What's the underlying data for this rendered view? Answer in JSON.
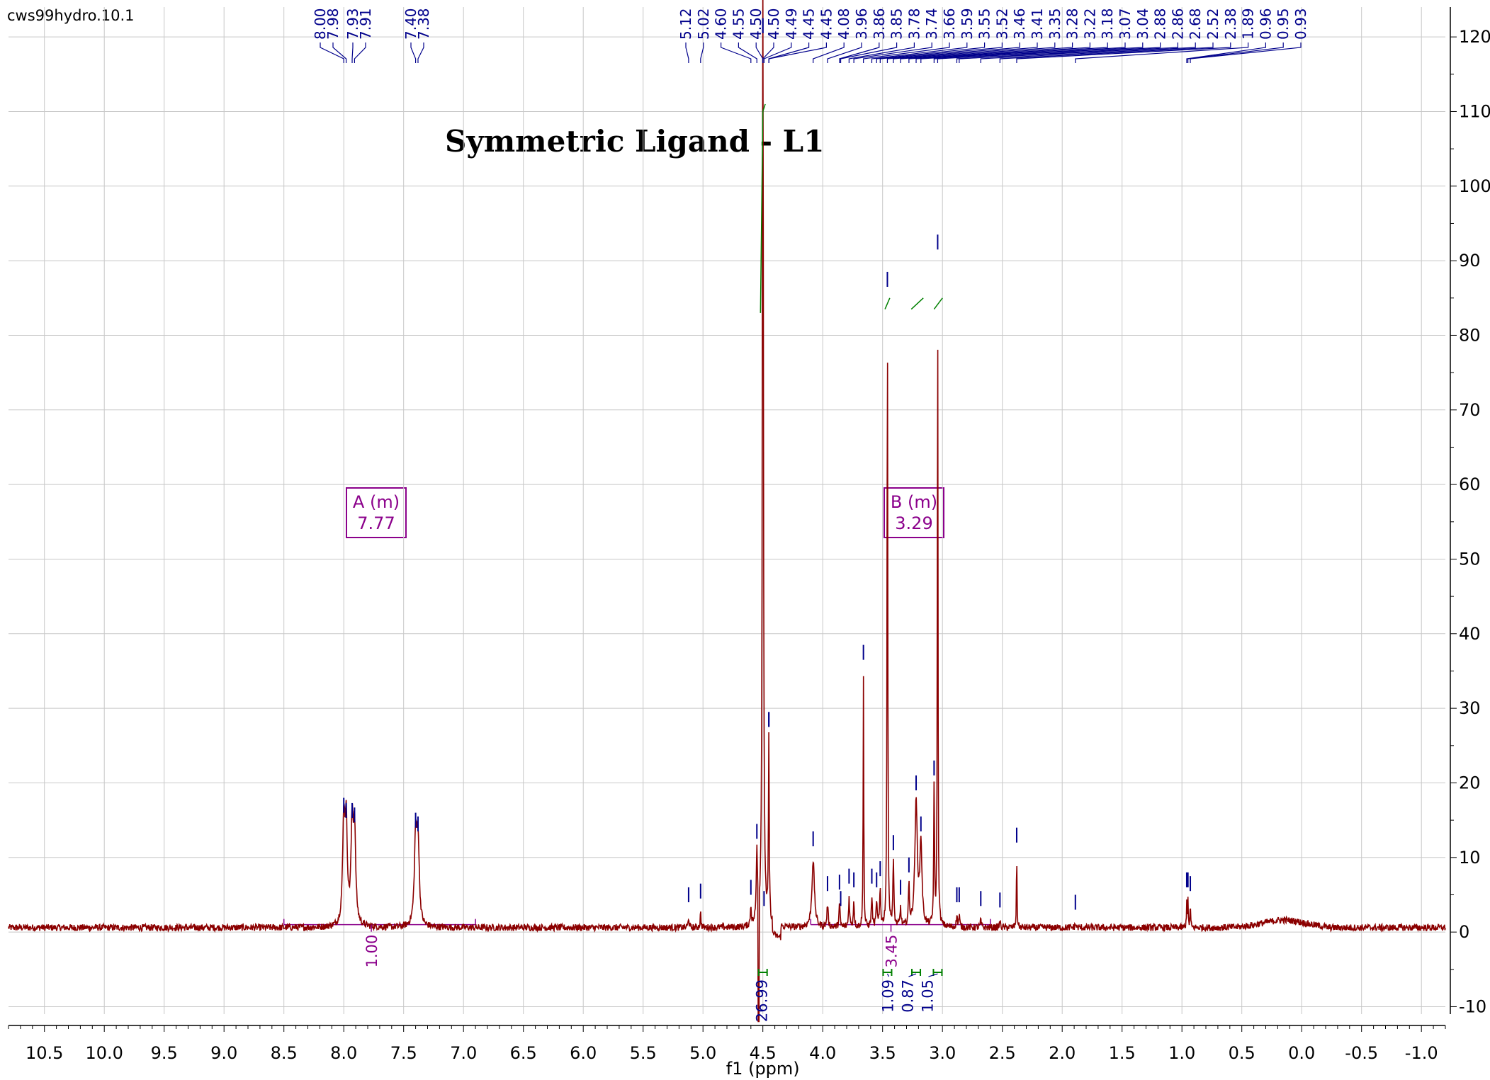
{
  "chart_data": {
    "type": "line",
    "dataset_name": "cws99hydro.10.1",
    "title": "Symmetric Ligand - L1",
    "xlabel": "f1 (ppm)",
    "ylabel": "",
    "x_reversed": true,
    "xlim": [
      10.8,
      -1.2
    ],
    "ylim": [
      -11,
      124
    ],
    "x_ticks": [
      "10.5",
      "10.0",
      "9.5",
      "9.0",
      "8.5",
      "8.0",
      "7.5",
      "7.0",
      "6.5",
      "6.0",
      "5.5",
      "5.0",
      "4.5",
      "4.0",
      "3.5",
      "3.0",
      "2.5",
      "2.0",
      "1.5",
      "1.0",
      "0.5",
      "0.0",
      "-0.5",
      "-1.0"
    ],
    "y_ticks": [
      "-10",
      "0",
      "10",
      "20",
      "30",
      "40",
      "50",
      "60",
      "70",
      "80",
      "90",
      "100",
      "110",
      "120"
    ],
    "grid": true,
    "peak_labels": [
      "8.00",
      "7.98",
      "7.93",
      "7.91",
      "7.40",
      "7.38",
      "5.12",
      "5.02",
      "4.60",
      "4.55",
      "4.50",
      "4.50",
      "4.49",
      "4.45",
      "4.45",
      "4.08",
      "3.96",
      "3.86",
      "3.85",
      "3.78",
      "3.74",
      "3.66",
      "3.59",
      "3.55",
      "3.52",
      "3.46",
      "3.41",
      "3.35",
      "3.28",
      "3.22",
      "3.18",
      "3.07",
      "3.04",
      "2.88",
      "2.86",
      "2.68",
      "2.52",
      "2.38",
      "1.89",
      "0.96",
      "0.95",
      "0.93"
    ],
    "multiplets": [
      {
        "label": "A (m)",
        "shift": "7.77",
        "range": [
          8.5,
          6.9
        ],
        "integral": "1.00"
      },
      {
        "label": "B (m)",
        "shift": "3.29",
        "range": [
          4.1,
          2.6
        ],
        "integral": "3.45"
      }
    ],
    "integrals": [
      {
        "value": "26.99",
        "ppm": 4.5
      },
      {
        "value": "1.09",
        "ppm": 3.46
      },
      {
        "value": "0.87",
        "ppm": 3.22
      },
      {
        "value": "1.05",
        "ppm": 3.04
      }
    ],
    "peaks": [
      {
        "ppm": 8.0,
        "height": 13.5,
        "width": 0.022
      },
      {
        "ppm": 7.98,
        "height": 12.8,
        "width": 0.022
      },
      {
        "ppm": 7.93,
        "height": 12.8,
        "width": 0.022
      },
      {
        "ppm": 7.91,
        "height": 12.2,
        "width": 0.022
      },
      {
        "ppm": 7.4,
        "height": 11.5,
        "width": 0.024
      },
      {
        "ppm": 7.38,
        "height": 11.0,
        "width": 0.024
      },
      {
        "ppm": 5.12,
        "height": 1.5,
        "width": 0.008
      },
      {
        "ppm": 5.02,
        "height": 2.0,
        "width": 0.008
      },
      {
        "ppm": 4.6,
        "height": 2.5,
        "width": 0.01
      },
      {
        "ppm": 4.55,
        "height": 10.0,
        "width": 0.012
      },
      {
        "ppm": 4.5,
        "height": 140,
        "width": 0.01
      },
      {
        "ppm": 4.45,
        "height": 25,
        "width": 0.008
      },
      {
        "ppm": 4.08,
        "height": 9.0,
        "width": 0.025
      },
      {
        "ppm": 3.96,
        "height": 3.0,
        "width": 0.012
      },
      {
        "ppm": 3.86,
        "height": 3.2,
        "width": 0.01
      },
      {
        "ppm": 3.78,
        "height": 4.0,
        "width": 0.01
      },
      {
        "ppm": 3.74,
        "height": 3.5,
        "width": 0.01
      },
      {
        "ppm": 3.66,
        "height": 34,
        "width": 0.006
      },
      {
        "ppm": 3.59,
        "height": 4.0,
        "width": 0.01
      },
      {
        "ppm": 3.55,
        "height": 3.5,
        "width": 0.01
      },
      {
        "ppm": 3.52,
        "height": 5.0,
        "width": 0.01
      },
      {
        "ppm": 3.46,
        "height": 84,
        "width": 0.007
      },
      {
        "ppm": 3.41,
        "height": 8.5,
        "width": 0.01
      },
      {
        "ppm": 3.35,
        "height": 2.5,
        "width": 0.01
      },
      {
        "ppm": 3.28,
        "height": 5.5,
        "width": 0.01
      },
      {
        "ppm": 3.22,
        "height": 16.5,
        "width": 0.025
      },
      {
        "ppm": 3.18,
        "height": 11.0,
        "width": 0.02
      },
      {
        "ppm": 3.07,
        "height": 18.5,
        "width": 0.008
      },
      {
        "ppm": 3.04,
        "height": 89,
        "width": 0.006
      },
      {
        "ppm": 2.88,
        "height": 1.5,
        "width": 0.01
      },
      {
        "ppm": 2.86,
        "height": 1.5,
        "width": 0.01
      },
      {
        "ppm": 2.68,
        "height": 1.0,
        "width": 0.01
      },
      {
        "ppm": 2.52,
        "height": 0.8,
        "width": 0.01
      },
      {
        "ppm": 2.38,
        "height": 9.5,
        "width": 0.006
      },
      {
        "ppm": 1.89,
        "height": 0.5,
        "width": 0.01
      },
      {
        "ppm": 0.96,
        "height": 3.5,
        "width": 0.006
      },
      {
        "ppm": 0.95,
        "height": 3.5,
        "width": 0.006
      },
      {
        "ppm": 0.93,
        "height": 3.0,
        "width": 0.006
      }
    ],
    "colors": {
      "spectrum": "#8B0000",
      "peak_labels": "#00008B",
      "integral": "#8B008B",
      "integral_curve": "#008000",
      "grid": "#C8C8C8"
    }
  }
}
